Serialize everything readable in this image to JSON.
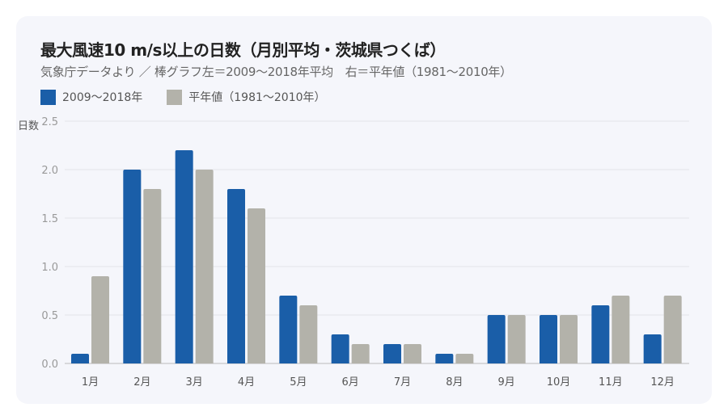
{
  "title": "最大風速10 m/s以上の日数（月別平均・茨城県つくば）",
  "subtitle": "気象庁データより ／ 棒グラフ左＝2009〜2018年平均　右＝平年値（1981〜2010年）",
  "colors": {
    "recent": "#1a5ea8",
    "normal": "#b3b2aa"
  },
  "chart_data": {
    "type": "bar",
    "title": "最大風速10 m/s以上の日数（月別平均・茨城県つくば）",
    "ylabel": "日数",
    "xlabel": "",
    "ylim": [
      0,
      2.5
    ],
    "yticks": [
      "0.0",
      "0.5",
      "1.0",
      "1.5",
      "2.0",
      "2.5"
    ],
    "grid": true,
    "legend_position": "top-left",
    "categories": [
      "1月",
      "2月",
      "3月",
      "4月",
      "5月",
      "6月",
      "7月",
      "8月",
      "9月",
      "10月",
      "11月",
      "12月"
    ],
    "series": [
      {
        "name": "2009〜2018年",
        "values": [
          0.1,
          2.0,
          2.2,
          1.8,
          0.7,
          0.3,
          0.2,
          0.1,
          0.5,
          0.5,
          0.6,
          0.3
        ]
      },
      {
        "name": "平年値（1981〜2010年）",
        "values": [
          0.9,
          1.8,
          2.0,
          1.6,
          0.6,
          0.2,
          0.2,
          0.1,
          0.5,
          0.5,
          0.7,
          0.7
        ]
      }
    ]
  }
}
